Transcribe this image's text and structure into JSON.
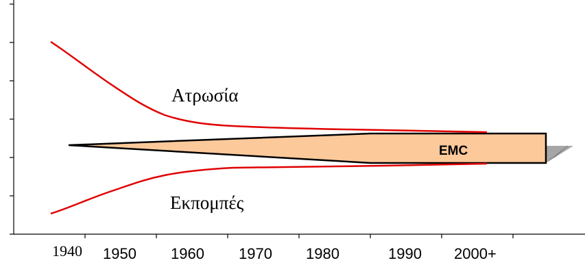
{
  "diagram": {
    "upper_label": "Ατρωσία",
    "lower_label": "Εκπομπές",
    "band_label": "EMC",
    "x_tick_labels": [
      "1940",
      "1950",
      "1960",
      "1970",
      "1980",
      "1990",
      "2000+"
    ],
    "colors": {
      "curves": "#e00000",
      "band_fill": "#fcc99b",
      "band_stroke": "#000000",
      "arrow_tip": "#999999",
      "axis": "#000000"
    }
  }
}
